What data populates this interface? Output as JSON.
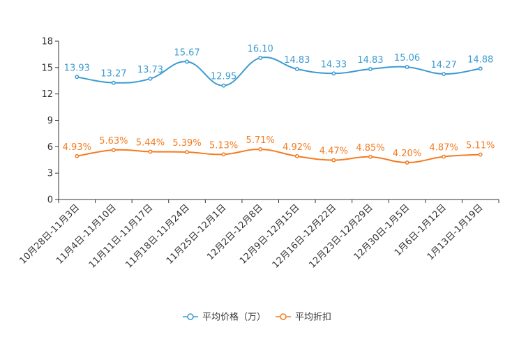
{
  "chart_data": {
    "type": "line",
    "title": "",
    "xlabel": "",
    "ylabel": "",
    "ylim": [
      0,
      18
    ],
    "yticks": [
      0,
      3,
      6,
      9,
      12,
      15,
      18
    ],
    "categories": [
      "10月28日-11月3日",
      "11月4日-11月10日",
      "11月11日-11月17日",
      "11月18日-11月24日",
      "11月25日-12月1日",
      "12月2日-12月8日",
      "12月9日-12月15日",
      "12月16日-12月22日",
      "12月23日-12月29日",
      "12月30日-1月5日",
      "1月6日-1月12日",
      "1月13日-1月19日"
    ],
    "series": [
      {
        "name": "平均价格（万）",
        "color": "#3a9bd0",
        "values": [
          13.93,
          13.27,
          13.73,
          15.67,
          12.95,
          16.1,
          14.83,
          14.33,
          14.83,
          15.06,
          14.27,
          14.88
        ],
        "labels": [
          "13.93",
          "13.27",
          "13.73",
          "15.67",
          "12.95",
          "16.10",
          "14.83",
          "14.33",
          "14.83",
          "15.06",
          "14.27",
          "14.88"
        ]
      },
      {
        "name": "平均折扣",
        "color": "#f47b20",
        "values": [
          4.93,
          5.63,
          5.44,
          5.39,
          5.13,
          5.71,
          4.92,
          4.47,
          4.85,
          4.2,
          4.87,
          5.11
        ],
        "labels": [
          "4.93%",
          "5.63%",
          "5.44%",
          "5.39%",
          "5.13%",
          "5.71%",
          "4.92%",
          "4.47%",
          "4.85%",
          "4.20%",
          "4.87%",
          "5.11%"
        ]
      }
    ],
    "legend": "bottom-center"
  }
}
